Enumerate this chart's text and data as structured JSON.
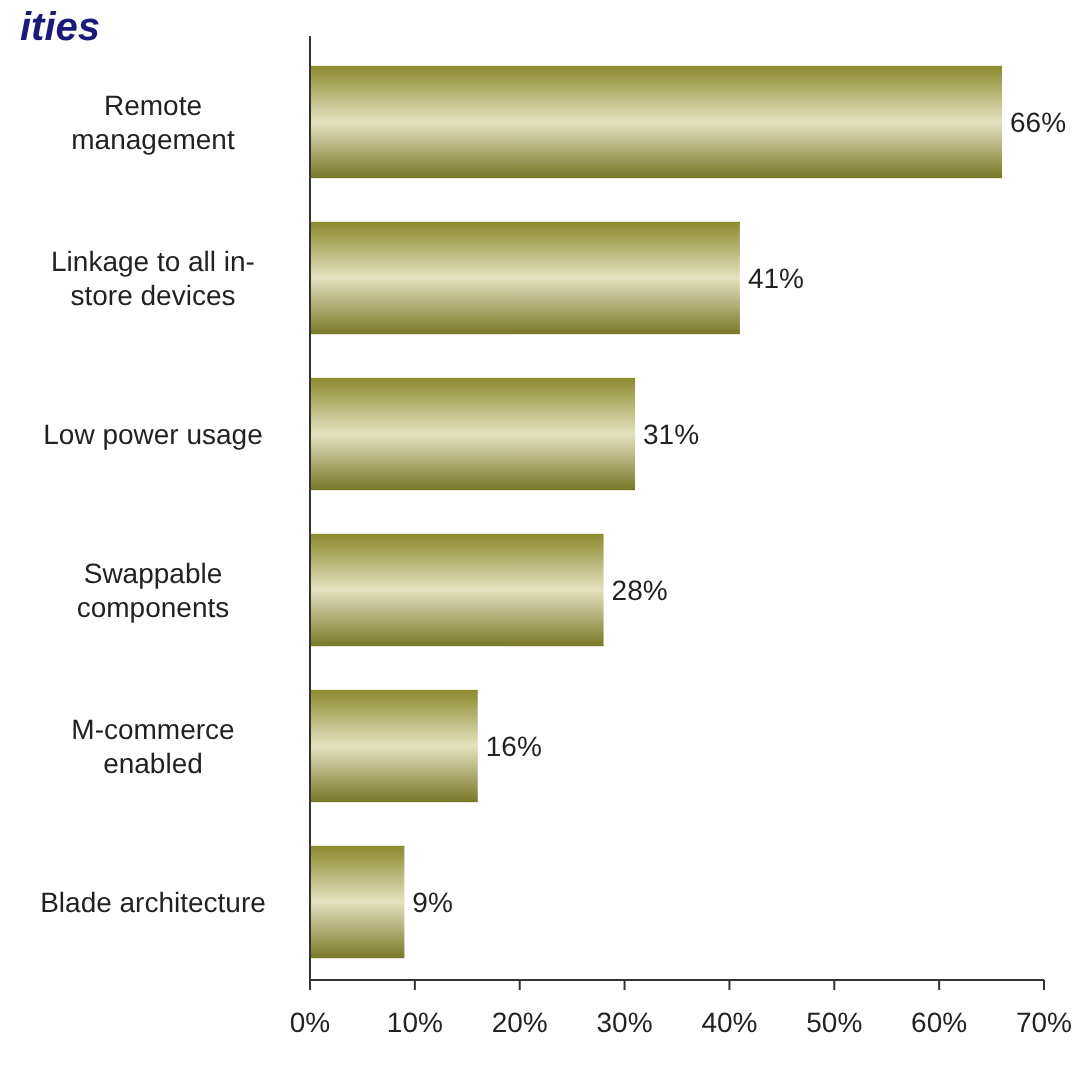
{
  "chart_data": {
    "type": "bar",
    "orientation": "horizontal",
    "title": "ities",
    "categories": [
      "Remote management",
      "Linkage to all in-store devices",
      "Low power usage",
      "Swappable components",
      "M-commerce enabled",
      "Blade architecture"
    ],
    "values": [
      66,
      41,
      31,
      28,
      16,
      9
    ],
    "color": "#8a8a2e",
    "xlim": [
      0,
      70
    ],
    "xticks": [
      {
        "value": 0,
        "label": "0%"
      },
      {
        "value": 10,
        "label": "10%"
      },
      {
        "value": 20,
        "label": "20%"
      },
      {
        "value": 30,
        "label": "30%"
      },
      {
        "value": 40,
        "label": "40%"
      },
      {
        "value": 50,
        "label": "50%"
      },
      {
        "value": 60,
        "label": "60%"
      },
      {
        "value": 70,
        "label": "70%"
      }
    ],
    "value_labels": [
      "66%",
      "41%",
      "31%",
      "28%",
      "16%",
      "9%"
    ],
    "grid": false
  }
}
